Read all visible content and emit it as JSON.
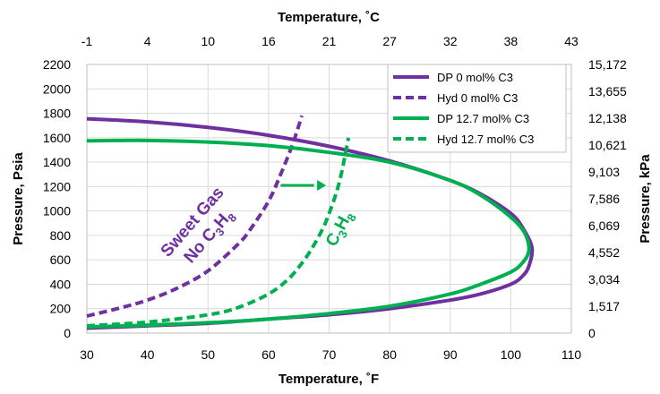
{
  "chart_data": {
    "type": "line",
    "xlabel": "Temperature, ˚F",
    "x2label": "Temperature, ˚C",
    "ylabel": "Pressure, Psia",
    "y2label": "Pressure, kPa",
    "xlim": [
      30,
      110
    ],
    "ylim": [
      0,
      2200
    ],
    "x_ticks": [
      "30",
      "40",
      "50",
      "60",
      "70",
      "80",
      "90",
      "100",
      "110"
    ],
    "y_ticks": [
      "0",
      "200",
      "400",
      "600",
      "800",
      "1000",
      "1200",
      "1400",
      "1600",
      "1800",
      "2000",
      "2200"
    ],
    "x2_ticks": [
      "-1",
      "4",
      "10",
      "16",
      "21",
      "27",
      "32",
      "38",
      "43"
    ],
    "y2_ticks": [
      "0",
      "1,517",
      "3,034",
      "4,552",
      "6,069",
      "7,586",
      "9,103",
      "10,621",
      "12,138",
      "13,655",
      "15,172"
    ],
    "grid": true,
    "legend_position": "top-right",
    "series": [
      {
        "name": "DP 0 mol% C3",
        "color": "#7030a0",
        "dash": "solid",
        "x": [
          30,
          40,
          50,
          60,
          70,
          80,
          90,
          95,
          100,
          102,
          103.5,
          103,
          102,
          100,
          95,
          90,
          80,
          70,
          60,
          50,
          40,
          30
        ],
        "y": [
          1755,
          1730,
          1685,
          1620,
          1530,
          1410,
          1250,
          1140,
          980,
          860,
          700,
          550,
          470,
          400,
          320,
          270,
          200,
          150,
          115,
          80,
          60,
          40
        ]
      },
      {
        "name": "Hyd 0 mol% C3",
        "color": "#7030a0",
        "dash": "dashed",
        "x": [
          30,
          35,
          40,
          45,
          50,
          55,
          57,
          60,
          62,
          64,
          65.5
        ],
        "y": [
          140,
          200,
          270,
          370,
          510,
          730,
          850,
          1080,
          1300,
          1550,
          1780
        ]
      },
      {
        "name": "DP 12.7 mol% C3",
        "color": "#00b050",
        "dash": "solid",
        "x": [
          30,
          40,
          50,
          60,
          70,
          80,
          90,
          95,
          100,
          102.3,
          103,
          102,
          100,
          95,
          90,
          80,
          70,
          60,
          50,
          40,
          30
        ],
        "y": [
          1575,
          1578,
          1565,
          1535,
          1480,
          1400,
          1250,
          1130,
          950,
          820,
          680,
          580,
          500,
          400,
          320,
          220,
          160,
          115,
          85,
          65,
          50
        ]
      },
      {
        "name": "Hyd 12.7 mol% C3",
        "color": "#00b050",
        "dash": "dashed",
        "x": [
          30,
          40,
          50,
          55,
          60,
          63,
          65,
          67,
          69,
          70,
          71,
          72,
          73.2
        ],
        "y": [
          60,
          90,
          150,
          210,
          320,
          430,
          540,
          680,
          860,
          980,
          1120,
          1300,
          1600
        ]
      }
    ],
    "annotations": [
      {
        "text_lines": [
          "Sweet Gas",
          "No C3H8"
        ],
        "color": "#7030a0"
      },
      {
        "text": "C3H8",
        "color": "#00b050"
      }
    ]
  }
}
